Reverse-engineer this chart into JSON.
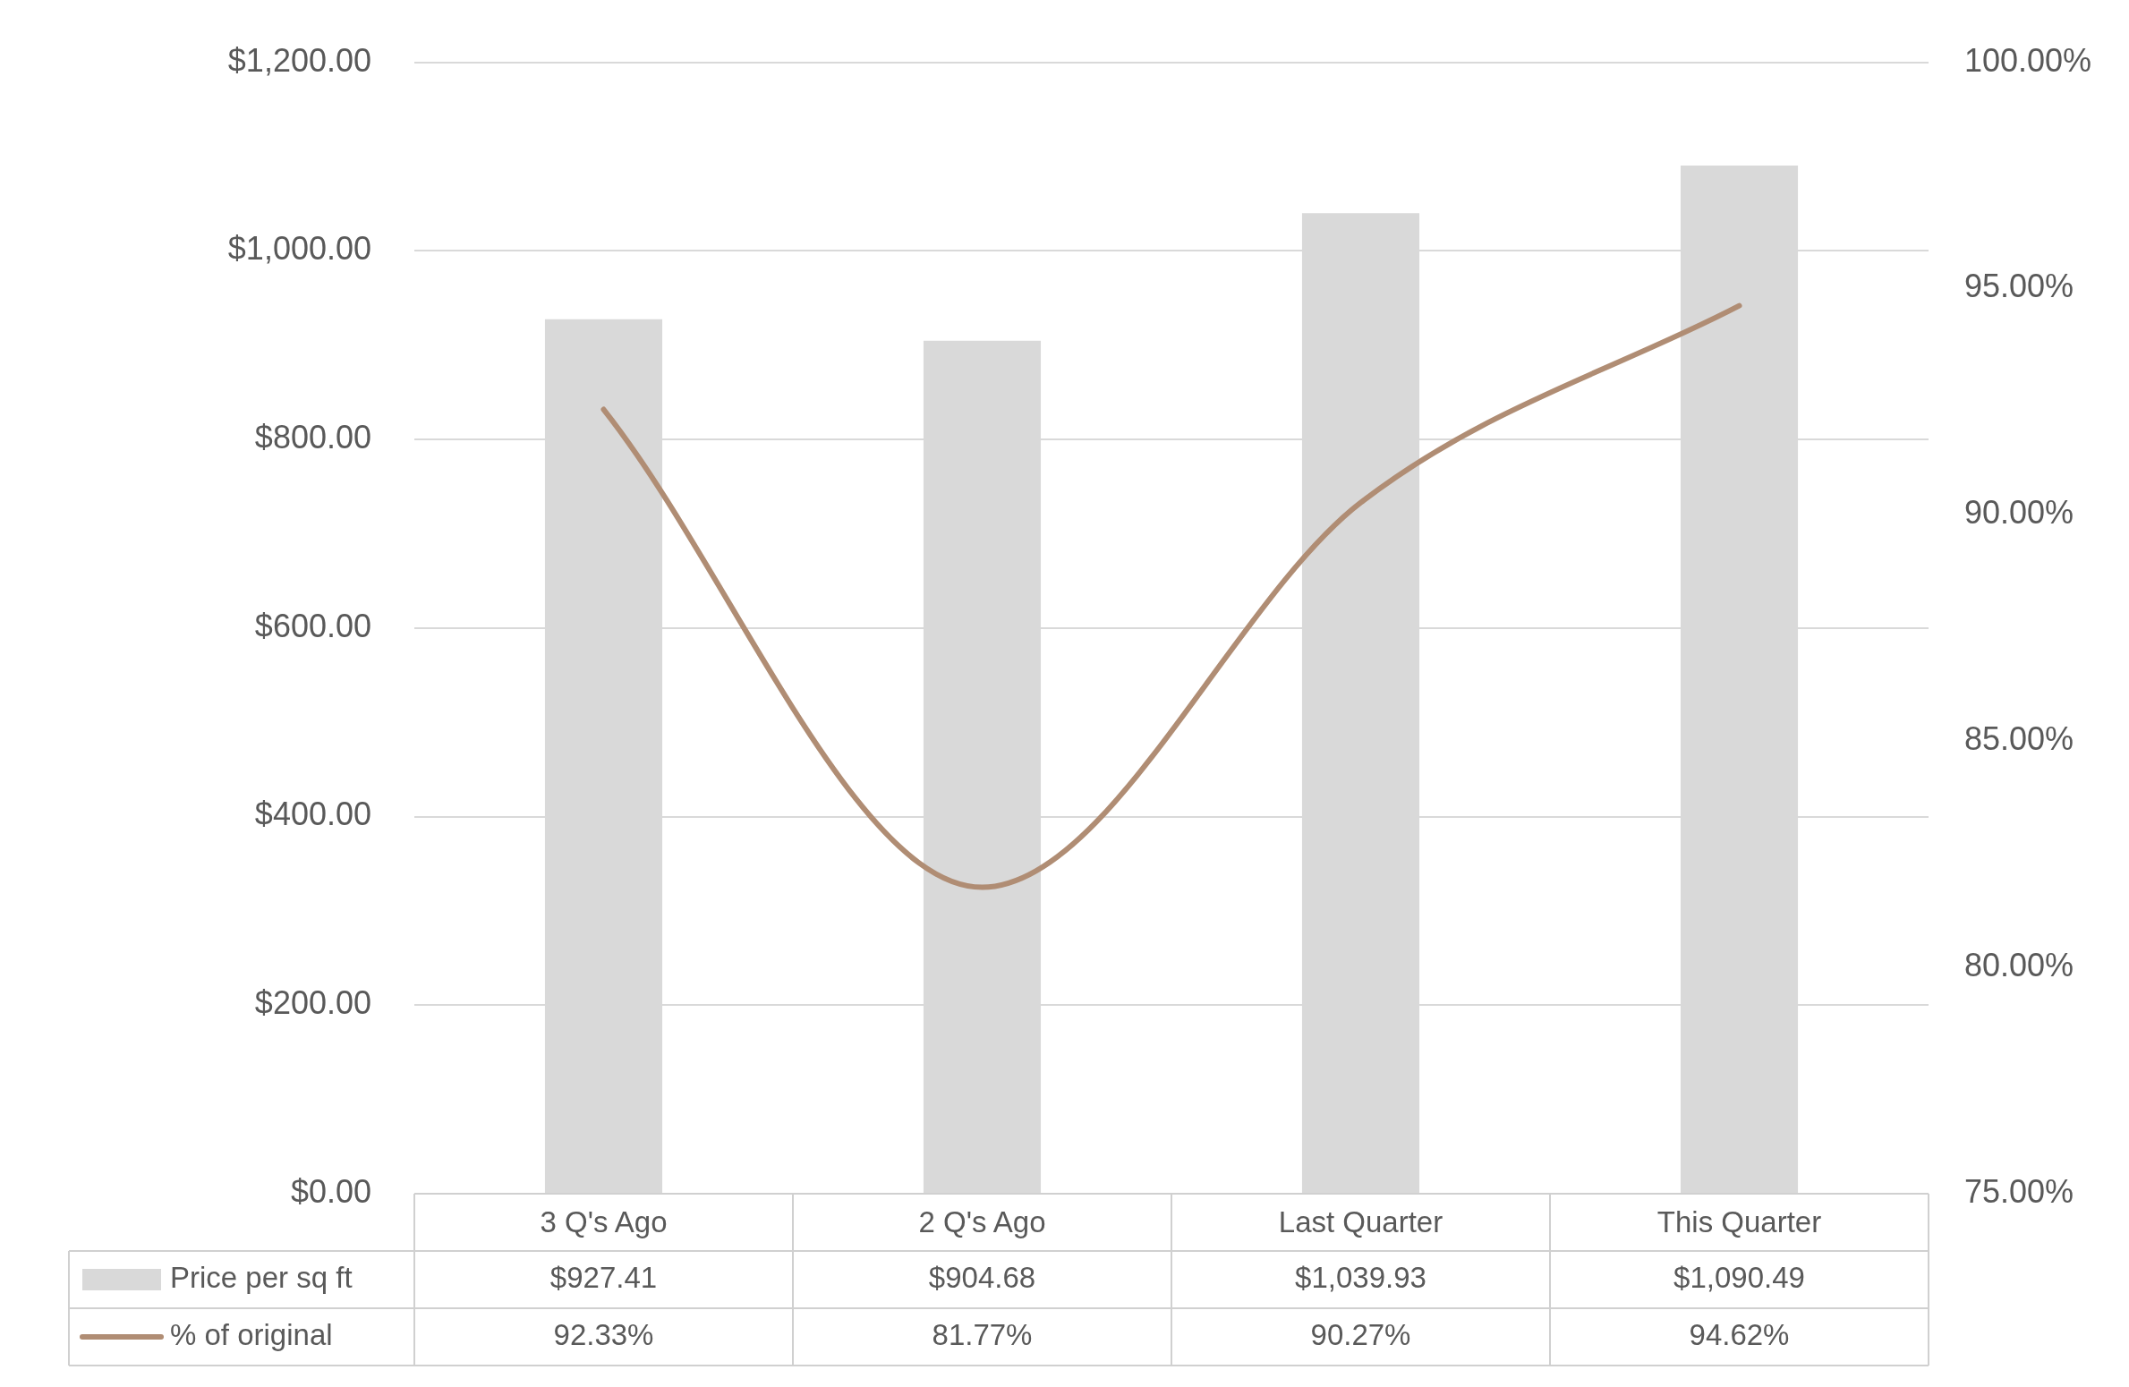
{
  "chart_data": {
    "type": "bar",
    "categories": [
      "3 Q's Ago",
      "2 Q's Ago",
      "Last Quarter",
      "This Quarter"
    ],
    "series": [
      {
        "name": "Price per sq ft",
        "color": "#d9d9d9",
        "values": [
          927.41,
          904.68,
          1039.93,
          1090.49
        ],
        "value_labels": [
          "$927.41",
          "$904.68",
          "$1,039.93",
          "$1,090.49"
        ]
      },
      {
        "name": "% of original",
        "type": "line",
        "axis": "y2",
        "color": "#b08d74",
        "values": [
          92.33,
          81.77,
          90.27,
          94.62
        ],
        "value_labels": [
          "92.33%",
          "81.77%",
          "90.27%",
          "94.62%"
        ]
      }
    ],
    "ylim": [
      0,
      1200
    ],
    "yticks": [
      {
        "value": 0,
        "label": "$0.00"
      },
      {
        "value": 200,
        "label": "$200.00"
      },
      {
        "value": 400,
        "label": "$400.00"
      },
      {
        "value": 600,
        "label": "$600.00"
      },
      {
        "value": 800,
        "label": "$800.00"
      },
      {
        "value": 1000,
        "label": "$1,000.00"
      },
      {
        "value": 1200,
        "label": "$1,200.00"
      }
    ],
    "y2lim": [
      75,
      100
    ],
    "y2ticks": [
      {
        "value": 75,
        "label": "75.00%"
      },
      {
        "value": 80,
        "label": "80.00%"
      },
      {
        "value": 85,
        "label": "85.00%"
      },
      {
        "value": 90,
        "label": "90.00%"
      },
      {
        "value": 95,
        "label": "95.00%"
      },
      {
        "value": 100,
        "label": "100.00%"
      }
    ],
    "grid": "y",
    "legend": "bottom left",
    "data_labels": true,
    "marker": "none",
    "line_style": "solid"
  }
}
